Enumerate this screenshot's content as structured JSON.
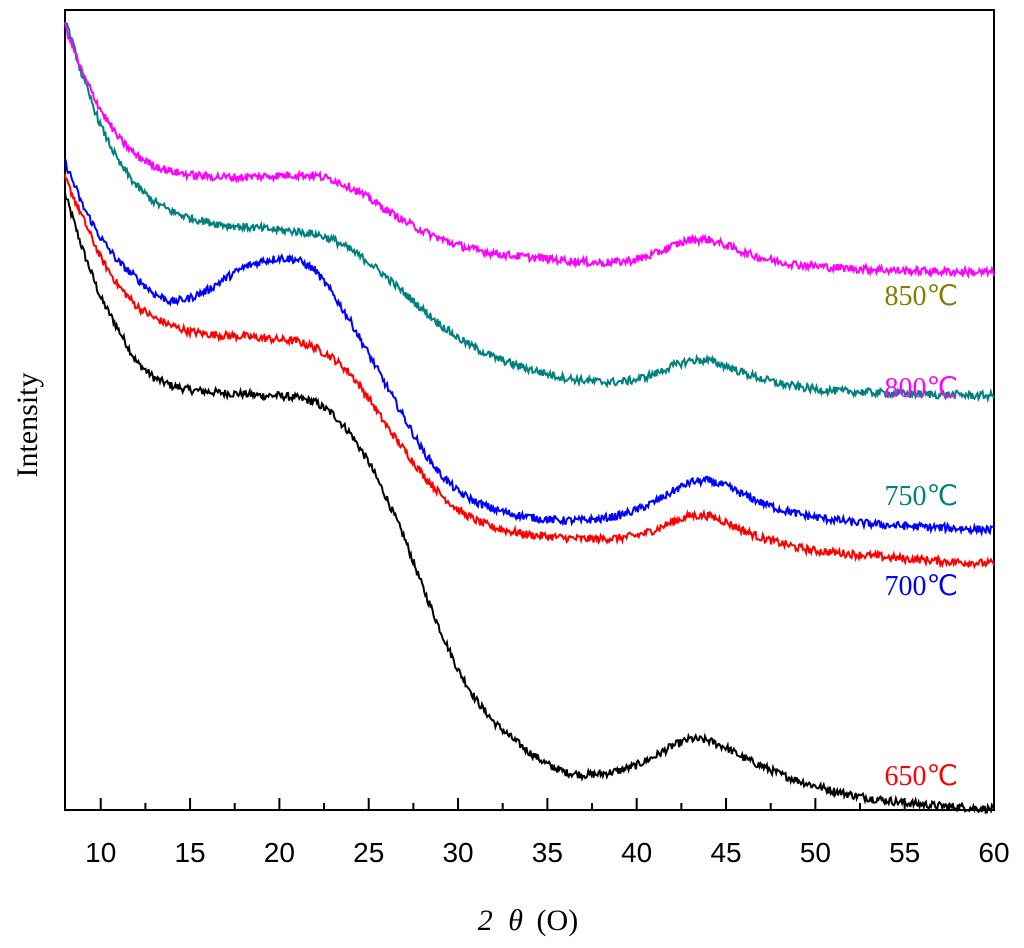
{
  "chart_data": {
    "type": "line",
    "title": "",
    "xlabel": "2θ (O)",
    "xlabel_parts": {
      "two": "2",
      "theta": "θ",
      "unit": "(O)"
    },
    "ylabel": "Intensity",
    "xlim": [
      8,
      60
    ],
    "ylim": [
      0,
      100
    ],
    "xticks": [
      10,
      15,
      20,
      25,
      30,
      35,
      40,
      45,
      50,
      55,
      60
    ],
    "xtick_labels": [
      "10",
      "15",
      "20",
      "25",
      "30",
      "35",
      "40",
      "45",
      "50",
      "55",
      "60"
    ],
    "y_tick_labels_shown": false,
    "grid": false,
    "legend": "inline labels at right",
    "series": [
      {
        "name": "650℃",
        "label": "650℃",
        "color": "#000000",
        "label_color": "#ff0000",
        "x": [
          8,
          9,
          10,
          11,
          12,
          13,
          14,
          15,
          16,
          17,
          18,
          19,
          20,
          21,
          22,
          23,
          24,
          25,
          26,
          27,
          28,
          29,
          30,
          31,
          32,
          33,
          34,
          35,
          36,
          37,
          38,
          39,
          40,
          41,
          42,
          43,
          44,
          45,
          46,
          47,
          48,
          49,
          50,
          51,
          52,
          53,
          54,
          55,
          56,
          57,
          58,
          59,
          60
        ],
        "y": [
          77,
          70,
          64,
          60,
          56,
          54,
          53,
          52.5,
          52.3,
          52.1,
          52.0,
          51.8,
          51.8,
          51.5,
          51.0,
          49.5,
          47.0,
          43.5,
          39.0,
          34.0,
          28.0,
          22.5,
          17.5,
          13.8,
          11.0,
          9.0,
          7.2,
          5.7,
          4.7,
          4.4,
          4.5,
          4.9,
          5.6,
          6.7,
          8.0,
          8.9,
          8.7,
          7.8,
          6.5,
          5.5,
          4.5,
          3.7,
          3.0,
          2.4,
          1.9,
          1.5,
          1.2,
          0.9,
          0.7,
          0.5,
          0.4,
          0.2,
          0.1
        ]
      },
      {
        "name": "700℃",
        "label": "700℃",
        "color": "#ff0000",
        "label_color": "#0000ff",
        "x": [
          8,
          9,
          10,
          11,
          12,
          13,
          14,
          15,
          16,
          17,
          18,
          19,
          20,
          21,
          22,
          23,
          24,
          25,
          26,
          27,
          28,
          29,
          30,
          31,
          32,
          33,
          34,
          35,
          36,
          37,
          38,
          39,
          40,
          41,
          42,
          43,
          44,
          45,
          46,
          47,
          48,
          49,
          50,
          51,
          52,
          53,
          54,
          55,
          56,
          57,
          58,
          59,
          60
        ],
        "y": [
          79,
          74,
          69,
          65.5,
          63,
          61.5,
          60.5,
          59.8,
          59.5,
          59.3,
          59.2,
          59.0,
          58.8,
          58.6,
          57.8,
          56.5,
          54.5,
          51.5,
          48.0,
          45.0,
          42.0,
          39.5,
          37.5,
          36.2,
          35.3,
          34.8,
          34.4,
          34.2,
          34.0,
          33.9,
          33.9,
          34.0,
          34.3,
          35.0,
          36.0,
          36.8,
          36.8,
          36.0,
          34.9,
          34.0,
          33.4,
          32.8,
          32.4,
          32.2,
          32.0,
          31.8,
          31.6,
          31.4,
          31.3,
          31.1,
          31.0,
          30.9,
          30.8
        ]
      },
      {
        "name": "750℃",
        "label": "750℃",
        "color": "#0000ff",
        "label_color": "#008080",
        "x": [
          8,
          9,
          10,
          11,
          12,
          13,
          14,
          15,
          16,
          17,
          18,
          19,
          20,
          21,
          22,
          23,
          24,
          25,
          26,
          27,
          28,
          29,
          30,
          31,
          32,
          33,
          34,
          35,
          36,
          37,
          38,
          39,
          40,
          41,
          42,
          43,
          44,
          45,
          46,
          47,
          48,
          49,
          50,
          51,
          52,
          53,
          54,
          55,
          56,
          57,
          58,
          59,
          60
        ],
        "y": [
          81,
          75.5,
          71.5,
          68.5,
          66.5,
          64.5,
          63.5,
          64.0,
          65.0,
          66.5,
          67.8,
          68.6,
          69.0,
          68.8,
          67.5,
          64.5,
          61.0,
          57.0,
          53.0,
          49.0,
          45.0,
          42.0,
          39.8,
          38.5,
          37.6,
          37.0,
          36.6,
          36.3,
          36.2,
          36.2,
          36.4,
          36.8,
          37.5,
          38.5,
          39.8,
          41.0,
          41.2,
          40.5,
          39.4,
          38.4,
          37.6,
          37.0,
          36.6,
          36.3,
          36.0,
          35.8,
          35.6,
          35.5,
          35.4,
          35.3,
          35.2,
          35.1,
          35.0
        ]
      },
      {
        "name": "800℃",
        "label": "800℃",
        "color": "#008080",
        "label_color": "#ff00ff",
        "x": [
          8,
          9,
          10,
          11,
          12,
          13,
          14,
          15,
          16,
          17,
          18,
          19,
          20,
          21,
          22,
          23,
          24,
          25,
          26,
          27,
          28,
          29,
          30,
          31,
          32,
          33,
          34,
          35,
          36,
          37,
          38,
          39,
          40,
          41,
          42,
          43,
          44,
          45,
          46,
          47,
          48,
          49,
          50,
          51,
          52,
          53,
          54,
          55,
          56,
          57,
          58,
          59,
          60
        ],
        "y": [
          99,
          91.5,
          85.5,
          81,
          78,
          76,
          74.8,
          74.0,
          73.5,
          73.1,
          72.9,
          72.7,
          72.5,
          72.3,
          72.0,
          71.3,
          70.0,
          68.5,
          66.6,
          64.6,
          62.6,
          60.7,
          59.0,
          57.7,
          56.6,
          55.8,
          55.1,
          54.5,
          54.0,
          53.7,
          53.5,
          53.5,
          53.8,
          54.5,
          55.5,
          56.2,
          56.2,
          55.5,
          54.6,
          53.9,
          53.3,
          52.9,
          52.6,
          52.4,
          52.3,
          52.2,
          52.1,
          52.0,
          52.0,
          51.9,
          51.9,
          51.8,
          51.8
        ]
      },
      {
        "name": "850℃",
        "label": "850℃",
        "color": "#ff00ff",
        "label_color": "#808000",
        "x": [
          8,
          9,
          10,
          11,
          12,
          13,
          14,
          15,
          16,
          17,
          18,
          19,
          20,
          21,
          22,
          23,
          24,
          25,
          26,
          27,
          28,
          29,
          30,
          31,
          32,
          33,
          34,
          35,
          36,
          37,
          38,
          39,
          40,
          41,
          42,
          43,
          44,
          45,
          46,
          47,
          48,
          49,
          50,
          51,
          52,
          53,
          54,
          55,
          56,
          57,
          58,
          59,
          60
        ],
        "y": [
          98,
          92,
          87.5,
          84,
          81.8,
          80.5,
          79.8,
          79.4,
          79.2,
          79.1,
          79.1,
          79.2,
          79.3,
          79.4,
          79.3,
          78.8,
          77.8,
          76.5,
          75.0,
          73.6,
          72.4,
          71.4,
          70.6,
          70.0,
          69.6,
          69.3,
          69.1,
          68.9,
          68.7,
          68.5,
          68.4,
          68.5,
          68.8,
          69.5,
          70.5,
          71.3,
          71.3,
          70.6,
          69.7,
          69.0,
          68.5,
          68.2,
          68.0,
          67.8,
          67.7,
          67.6,
          67.5,
          67.4,
          67.4,
          67.3,
          67.3,
          67.2,
          67.2
        ]
      }
    ]
  }
}
